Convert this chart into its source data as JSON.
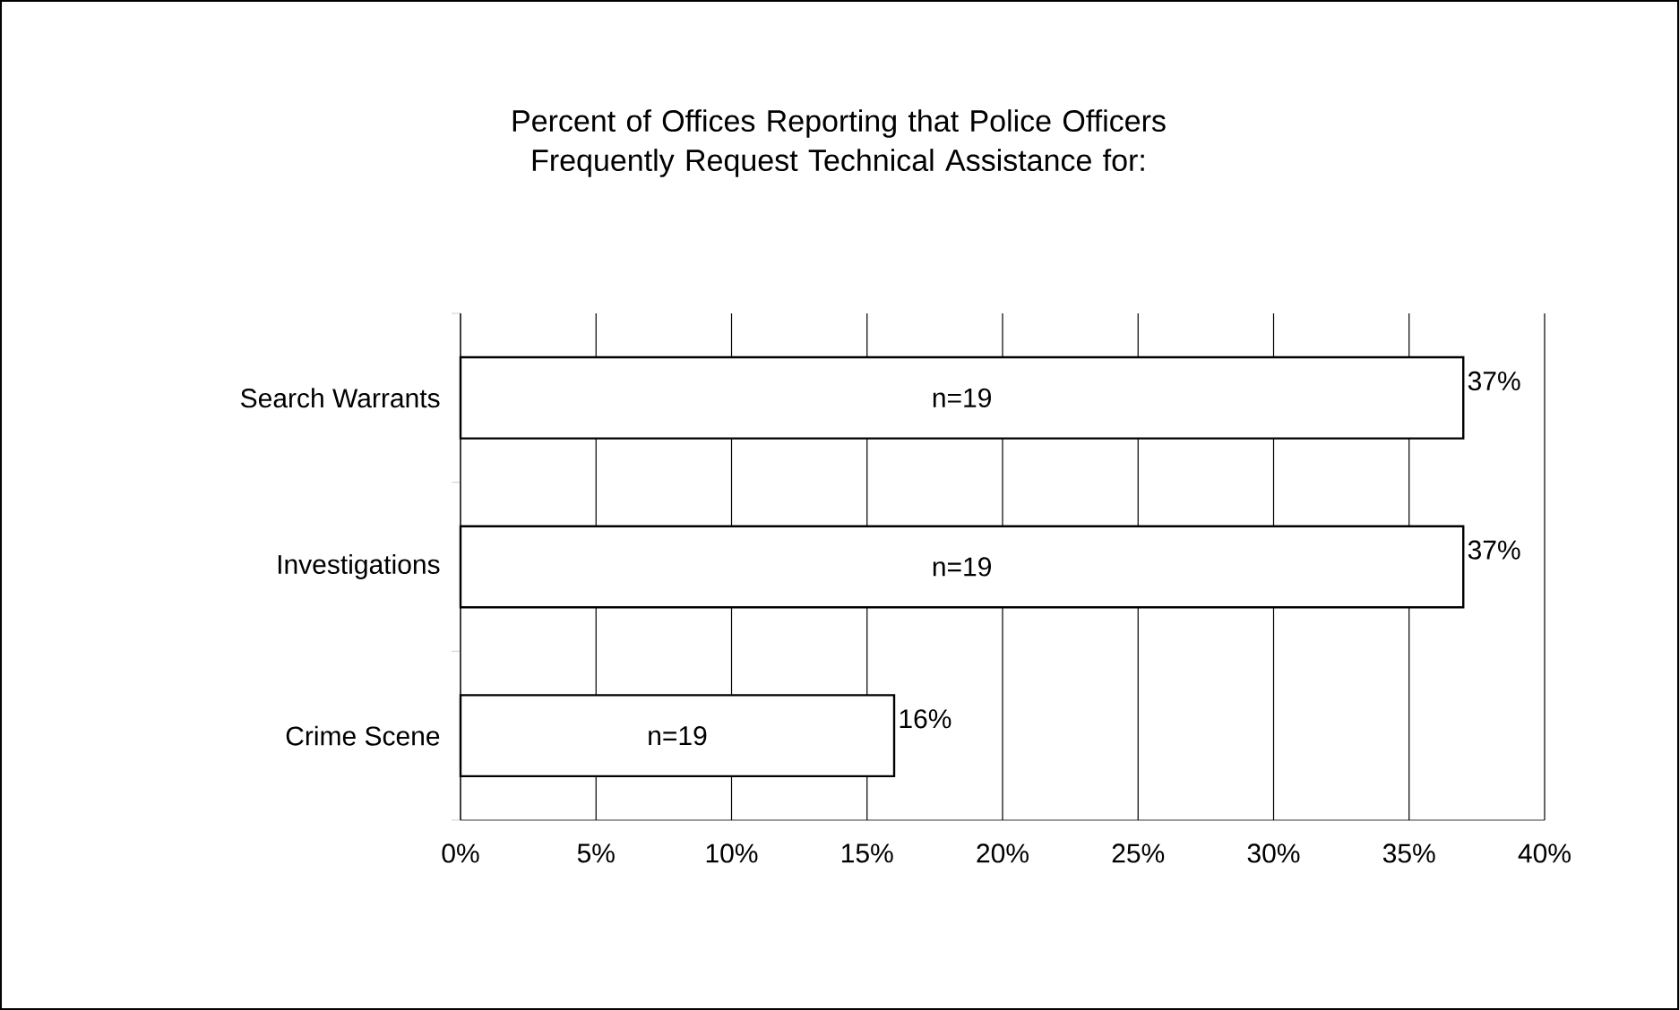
{
  "chart_data": {
    "type": "bar",
    "orientation": "horizontal",
    "title": "Percent of Offices Reporting that Police Officers Frequently Request Technical Assistance for:",
    "categories": [
      "Search Warrants",
      "Investigations",
      "Crime Scene"
    ],
    "values": [
      37,
      37,
      16
    ],
    "value_labels": [
      "37%",
      "37%",
      "16%"
    ],
    "color": "#ffffff",
    "xlim": [
      0,
      40
    ],
    "xticks": [
      {
        "value": 0,
        "label": "0%"
      },
      {
        "value": 5,
        "label": "5%"
      },
      {
        "value": 10,
        "label": "10%"
      },
      {
        "value": 15,
        "label": "15%"
      },
      {
        "value": 20,
        "label": "20%"
      },
      {
        "value": 25,
        "label": "25%"
      },
      {
        "value": 30,
        "label": "30%"
      },
      {
        "value": 35,
        "label": "35%"
      },
      {
        "value": 40,
        "label": "40%"
      }
    ],
    "grid": "x",
    "annotations": [
      "n=19",
      "n=19",
      "n=19"
    ]
  }
}
